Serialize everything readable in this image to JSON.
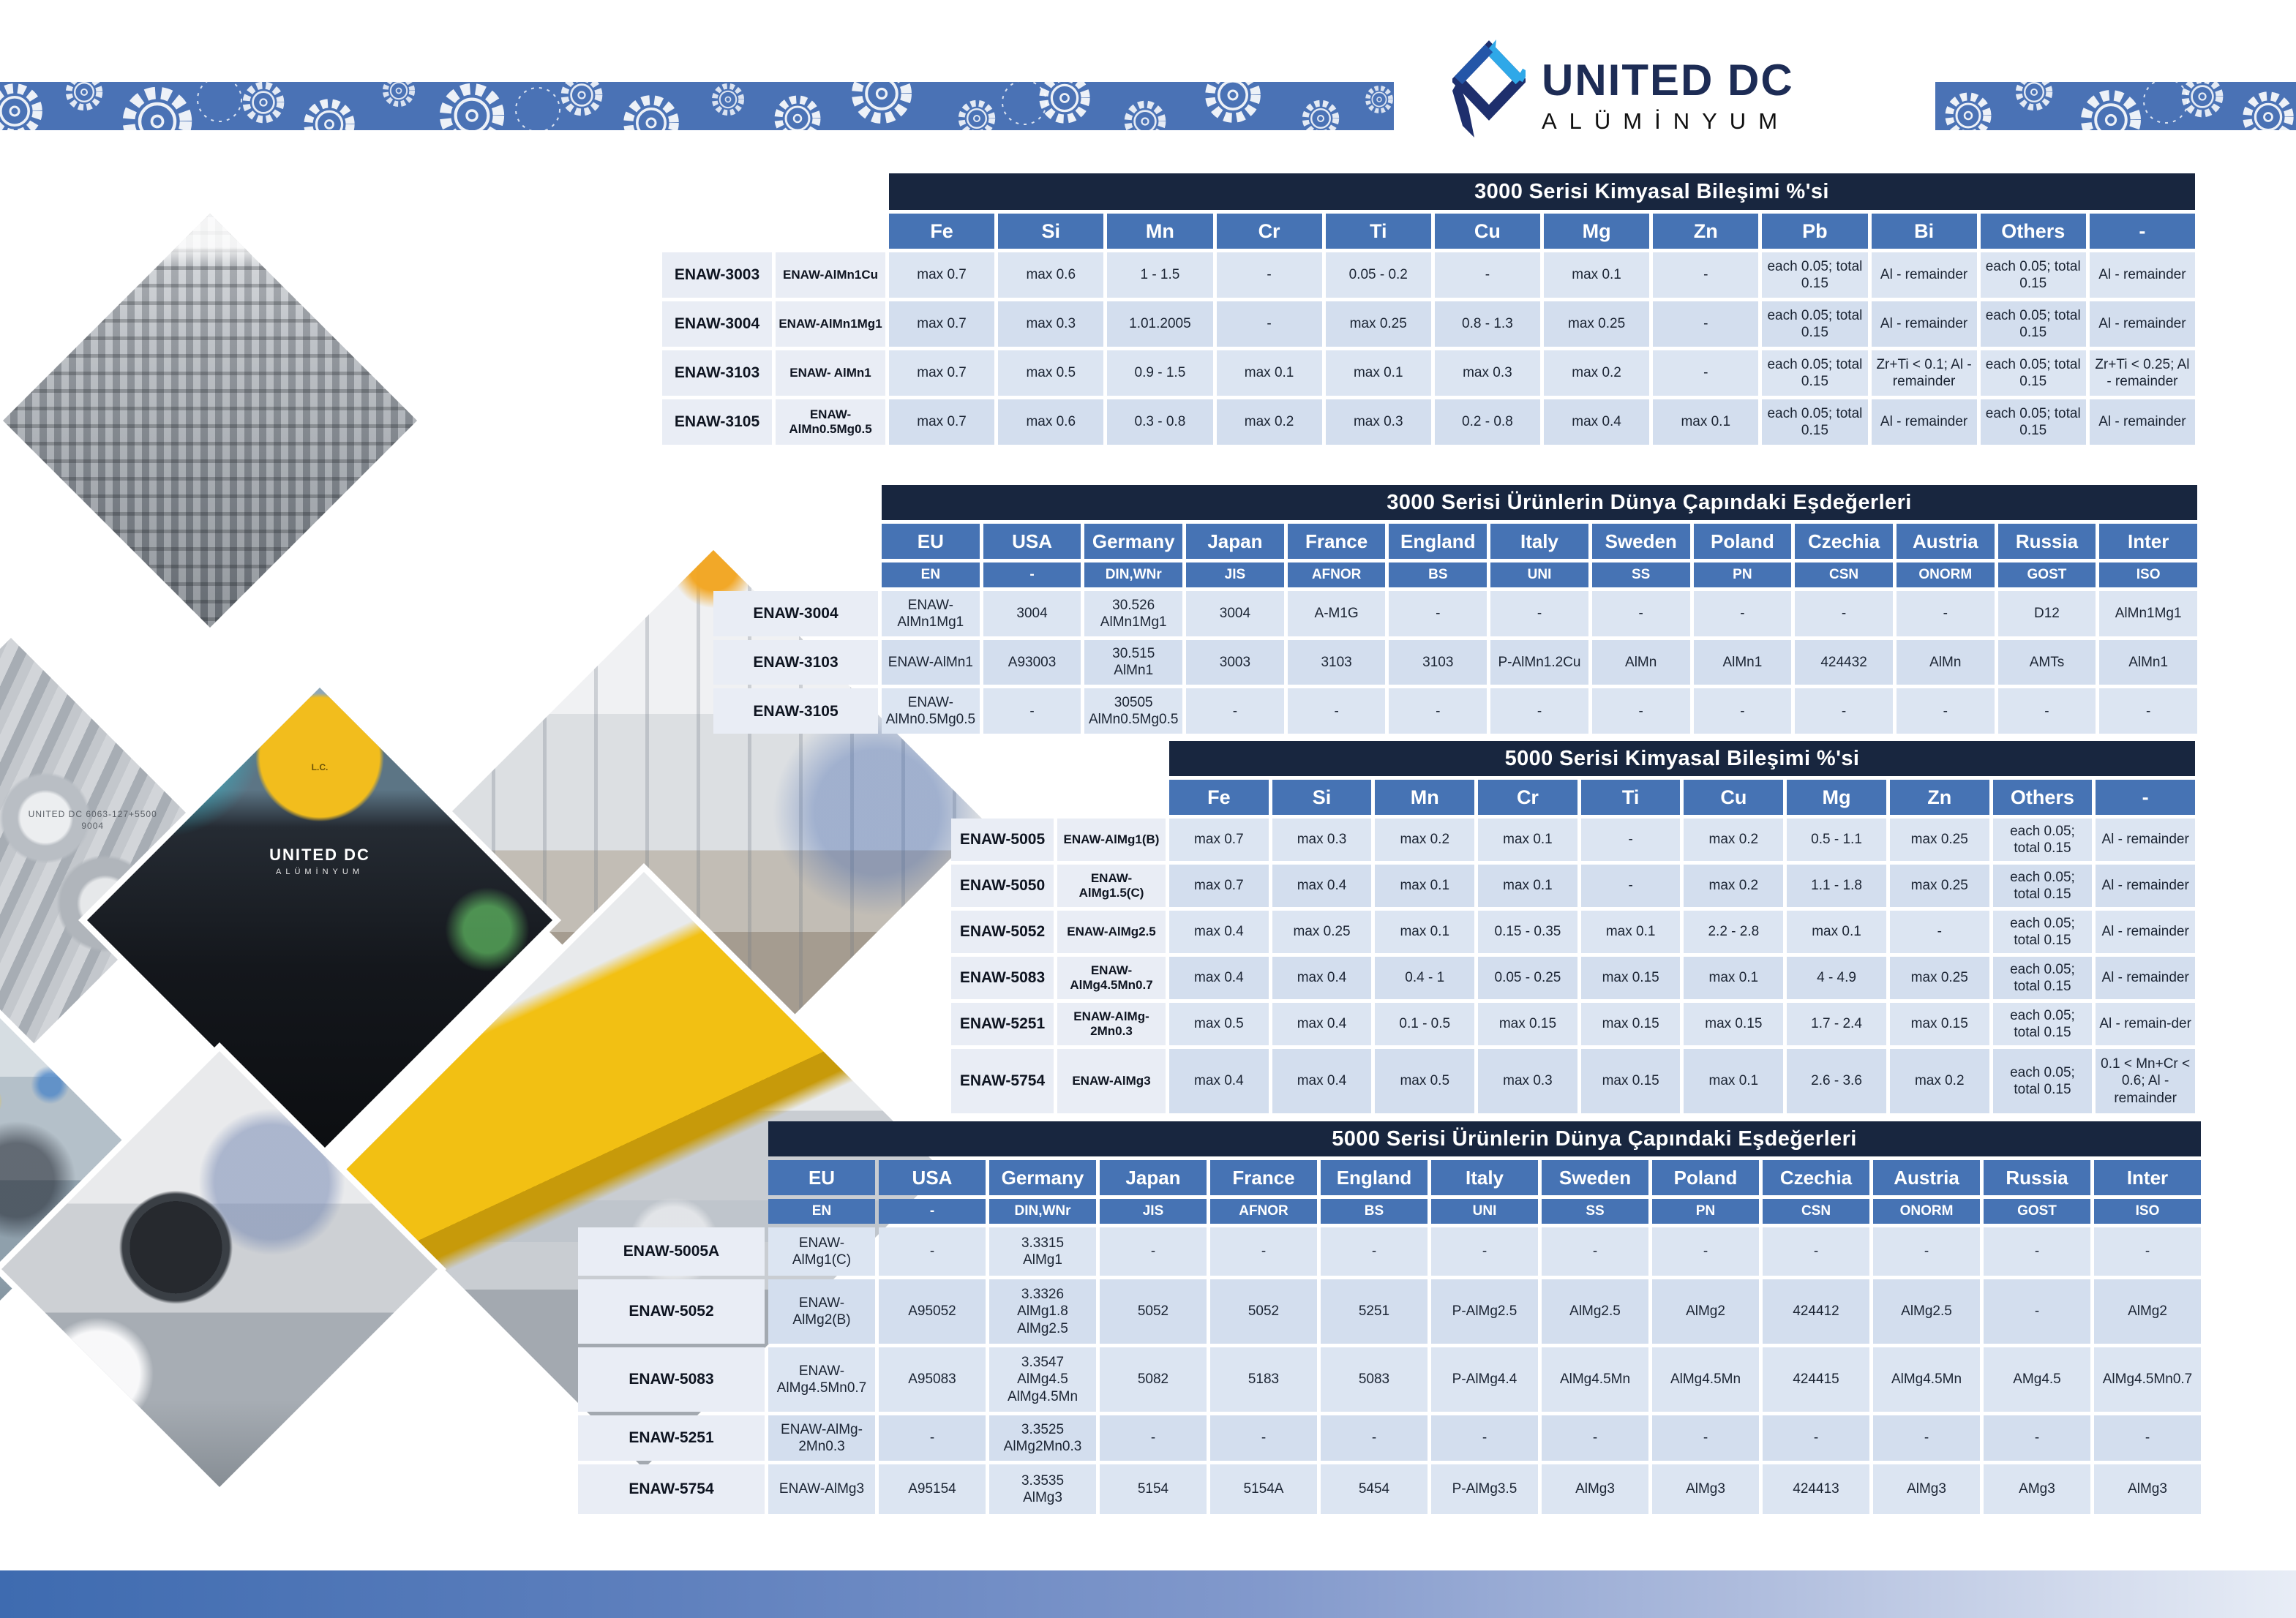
{
  "brand": {
    "title": "UNITED DC",
    "subtitle": "ALÜMİNYUM"
  },
  "colors": {
    "navy": "#18263f",
    "header_blue": "#4673b4",
    "band_blue": "#4a72b5",
    "cell_blue": "#dce5f2",
    "cell_blue_alt": "#d3deee",
    "label_bg": "#e9edf5",
    "footer_left": "#3e6bb0",
    "footer_right": "#e8edf6"
  },
  "photos": {
    "items": [
      {
        "name": "ingot-stacks-photo"
      },
      {
        "name": "aluminium-billets-photo",
        "stamp_text": "UNITED DC\n6063-127+5500\n9004"
      },
      {
        "name": "factory-hall-photo"
      },
      {
        "name": "worker-back-photo",
        "jacket_title": "UNITED DC",
        "jacket_subtitle": "ALÜMİNYUM",
        "helmet_text": "L.C."
      },
      {
        "name": "production-team-photo"
      },
      {
        "name": "extrusion-line-photo"
      },
      {
        "name": "cutting-machine-photo"
      }
    ]
  },
  "tables": {
    "comp3000": {
      "title": "3000 Serisi Kimyasal Bileşimi %'si",
      "columns": [
        "Fe",
        "Si",
        "Mn",
        "Cr",
        "Ti",
        "Cu",
        "Mg",
        "Zn",
        "Pb",
        "Bi",
        "Others",
        "-"
      ],
      "rows": [
        {
          "code": "ENAW-3003",
          "name": "ENAW-AlMn1Cu",
          "values": [
            "max  0.7",
            "max  0.6",
            "1 - 1.5",
            "-",
            "0.05 - 0.2",
            "-",
            "max  0.1",
            "-",
            "each 0.05; total 0.15",
            "Al - remainder",
            "each 0.05; total 0.15",
            "Al - remainder"
          ]
        },
        {
          "code": "ENAW-3004",
          "name": "ENAW-AlMn1Mg1",
          "values": [
            "max  0.7",
            "max  0.3",
            "1.01.2005",
            "-",
            "max  0.25",
            "0.8 - 1.3",
            "max  0.25",
            "-",
            "each 0.05; total 0.15",
            "Al - remainder",
            "each 0.05; total 0.15",
            "Al - remainder"
          ]
        },
        {
          "code": "ENAW-3103",
          "name": "ENAW- AlMn1",
          "values": [
            "max  0.7",
            "max  0.5",
            "0.9 - 1.5",
            "max  0.1",
            "max  0.1",
            "max  0.3",
            "max  0.2",
            "-",
            "each 0.05; total 0.15",
            "Zr+Ti < 0.1; Al - remainder",
            "each 0.05; total 0.15",
            "Zr+Ti < 0.25; Al - remainder"
          ]
        },
        {
          "code": "ENAW-3105",
          "name": "ENAW-AlMn0.5Mg0.5",
          "values": [
            "max  0.7",
            "max  0.6",
            "0.3 - 0.8",
            "max  0.2",
            "max  0.3",
            "0.2 - 0.8",
            "max  0.4",
            "max  0.1",
            "each 0.05; total 0.15",
            "Al - remainder",
            "each 0.05; total 0.15",
            "Al - remainder"
          ]
        }
      ]
    },
    "equiv3000": {
      "title": "3000 Serisi Ürünlerin Dünya Çapındaki Eşdeğerleri",
      "countries": [
        "EU",
        "USA",
        "Germany",
        "Japan",
        "France",
        "England",
        "Italy",
        "Sweden",
        "Poland",
        "Czechia",
        "Austria",
        "Russia",
        "Inter"
      ],
      "standards": [
        "EN",
        "-",
        "DIN,WNr",
        "JIS",
        "AFNOR",
        "BS",
        "UNI",
        "SS",
        "PN",
        "CSN",
        "ONORM",
        "GOST",
        "ISO"
      ],
      "rows": [
        {
          "code": "ENAW-3004",
          "values": [
            "ENAW-AlMn1Mg1",
            "3004",
            "30.526\nAlMn1Mg1",
            "3004",
            "A-M1G",
            "-",
            "-",
            "-",
            "-",
            "-",
            "-",
            "D12",
            "AlMn1Mg1"
          ]
        },
        {
          "code": "ENAW-3103",
          "values": [
            "ENAW-AlMn1",
            "A93003",
            "30.515\nAlMn1",
            "3003",
            "3103",
            "3103",
            "P-AlMn1.2Cu",
            "AlMn",
            "AlMn1",
            "424432",
            "AlMn",
            "AMTs",
            "AlMn1"
          ]
        },
        {
          "code": "ENAW-3105",
          "values": [
            "ENAW-\nAlMn0.5Mg0.5",
            "-",
            "30505\nAlMn0.5Mg0.5",
            "-",
            "-",
            "-",
            "-",
            "-",
            "-",
            "-",
            "-",
            "-",
            "-"
          ]
        }
      ]
    },
    "comp5000": {
      "title": "5000 Serisi Kimyasal Bileşimi %'si",
      "columns": [
        "Fe",
        "Si",
        "Mn",
        "Cr",
        "Ti",
        "Cu",
        "Mg",
        "Zn",
        "Others",
        "-"
      ],
      "rows": [
        {
          "code": "ENAW-5005",
          "name": "ENAW-AlMg1(B)",
          "values": [
            "max  0.7",
            "max  0.3",
            "max  0.2",
            "max  0.1",
            "-",
            "max  0.2",
            "0.5 - 1.1",
            "max  0.25",
            "each 0.05; total 0.15",
            "Al - remainder"
          ]
        },
        {
          "code": "ENAW-5050",
          "name": "ENAW-AlMg1.5(C)",
          "values": [
            "max  0.7",
            "max  0.4",
            "max  0.1",
            "max  0.1",
            "-",
            "max  0.2",
            "1.1 - 1.8",
            "max  0.25",
            "each 0.05; total 0.15",
            "Al - remainder"
          ]
        },
        {
          "code": "ENAW-5052",
          "name": "ENAW-AlMg2.5",
          "values": [
            "max  0.4",
            "max  0.25",
            "max  0.1",
            "0.15 - 0.35",
            "max  0.1",
            "2.2 - 2.8",
            "max  0.1",
            "-",
            "each 0.05; total 0.15",
            "Al - remainder"
          ]
        },
        {
          "code": "ENAW-5083",
          "name": "ENAW-AlMg4.5Mn0.7",
          "values": [
            "max  0.4",
            "max  0.4",
            "0.4 - 1",
            "0.05 - 0.25",
            "max  0.15",
            "max  0.1",
            "4 - 4.9",
            "max  0.25",
            "each 0.05; total 0.15",
            "Al - remainder"
          ]
        },
        {
          "code": "ENAW-5251",
          "name": "ENAW-AlMg-2Mn0.3",
          "values": [
            "max  0.5",
            "max  0.4",
            "0.1 - 0.5",
            "max  0.15",
            "max  0.15",
            "max  0.15",
            "1.7 - 2.4",
            "max  0.15",
            "each 0.05; total 0.15",
            "Al - remain-der"
          ]
        },
        {
          "code": "ENAW-5754",
          "name": "ENAW-AlMg3",
          "values": [
            "max  0.4",
            "max  0.4",
            "max  0.5",
            "max  0.3",
            "max  0.15",
            "max  0.1",
            "2.6 - 3.6",
            "max  0.2",
            "each 0.05; total 0.15",
            "0.1 < Mn+Cr < 0.6; Al - remainder"
          ]
        }
      ]
    },
    "equiv5000": {
      "title": "5000 Serisi Ürünlerin Dünya Çapındaki Eşdeğerleri",
      "countries": [
        "EU",
        "USA",
        "Germany",
        "Japan",
        "France",
        "England",
        "Italy",
        "Sweden",
        "Poland",
        "Czechia",
        "Austria",
        "Russia",
        "Inter"
      ],
      "standards": [
        "EN",
        "-",
        "DIN,WNr",
        "JIS",
        "AFNOR",
        "BS",
        "UNI",
        "SS",
        "PN",
        "CSN",
        "ONORM",
        "GOST",
        "ISO"
      ],
      "rows": [
        {
          "code": "ENAW-5005A",
          "values": [
            "ENAW-\nAlMg1(C)",
            "-",
            "3.3315\nAlMg1",
            "-",
            "-",
            "-",
            "-",
            "-",
            "-",
            "-",
            "-",
            "-",
            "-"
          ]
        },
        {
          "code": "ENAW-5052",
          "values": [
            "ENAW-\nAlMg2(B)",
            "A95052",
            "3.3326\nAlMg1.8\nAlMg2.5",
            "5052",
            "5052",
            "5251",
            "P-AlMg2.5",
            "AlMg2.5",
            "AlMg2",
            "424412",
            "AlMg2.5",
            "-",
            "AlMg2"
          ]
        },
        {
          "code": "ENAW-5083",
          "values": [
            "ENAW-\nAlMg4.5Mn0.7",
            "A95083",
            "3.3547\nAlMg4.5\nAlMg4.5Mn",
            "5082",
            "5183",
            "5083",
            "P-AlMg4.4",
            "AlMg4.5Mn",
            "AlMg4.5Mn",
            "424415",
            "AlMg4.5Mn",
            "AMg4.5",
            "AlMg4.5Mn0.7"
          ]
        },
        {
          "code": "ENAW-5251",
          "values": [
            "ENAW-AlMg-\n2Mn0.3",
            "-",
            "3.3525\nAlMg2Mn0.3",
            "-",
            "-",
            "-",
            "-",
            "-",
            "-",
            "-",
            "-",
            "-",
            "-"
          ]
        },
        {
          "code": "ENAW-5754",
          "values": [
            "ENAW-AlMg3",
            "A95154",
            "3.3535\nAlMg3",
            "5154",
            "5154A",
            "5454",
            "P-AlMg3.5",
            "AlMg3",
            "AlMg3",
            "424413",
            "AlMg3",
            "AMg3",
            "AlMg3"
          ]
        }
      ]
    }
  }
}
